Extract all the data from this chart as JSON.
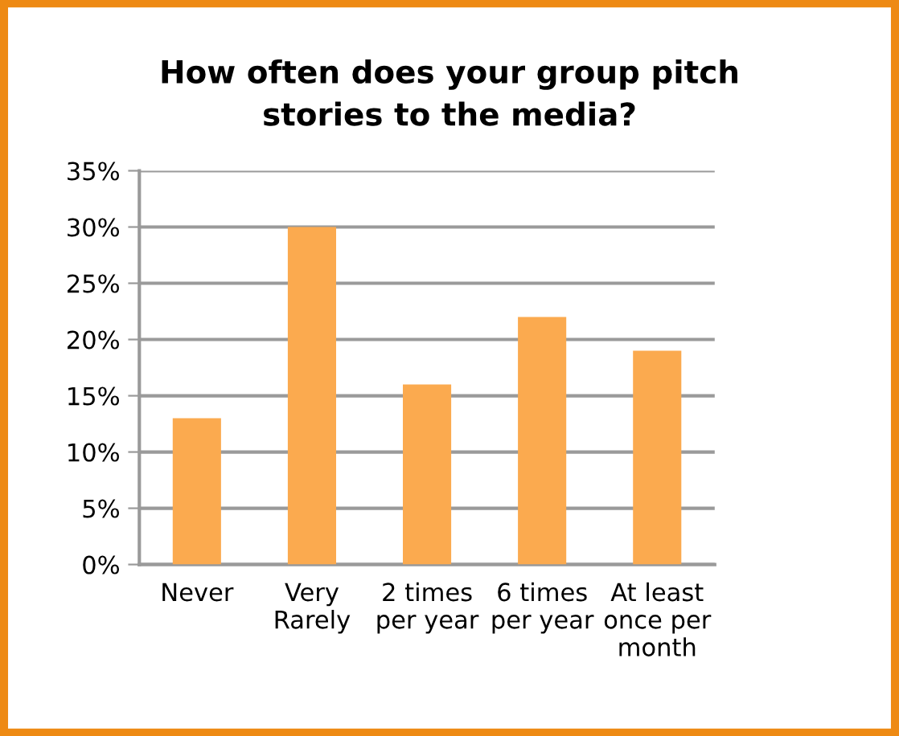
{
  "chart_data": {
    "type": "bar",
    "title": "How often does your group pitch\nstories to the media?",
    "categories": [
      "Never",
      "Very\nRarely",
      "2 times\nper year",
      "6 times\nper year",
      "At least\nonce per\nmonth"
    ],
    "values": [
      13,
      30,
      16,
      22,
      19
    ],
    "color": "#fbaa4f",
    "ylim": [
      0,
      35
    ],
    "yticks": [
      {
        "value": 0,
        "label": "0%"
      },
      {
        "value": 5,
        "label": "5%"
      },
      {
        "value": 10,
        "label": "10%"
      },
      {
        "value": 15,
        "label": "15%"
      },
      {
        "value": 20,
        "label": "20%"
      },
      {
        "value": 25,
        "label": "25%"
      },
      {
        "value": 30,
        "label": "30%"
      },
      {
        "value": 35,
        "label": "35%"
      }
    ],
    "grid": "y",
    "legend": false
  }
}
